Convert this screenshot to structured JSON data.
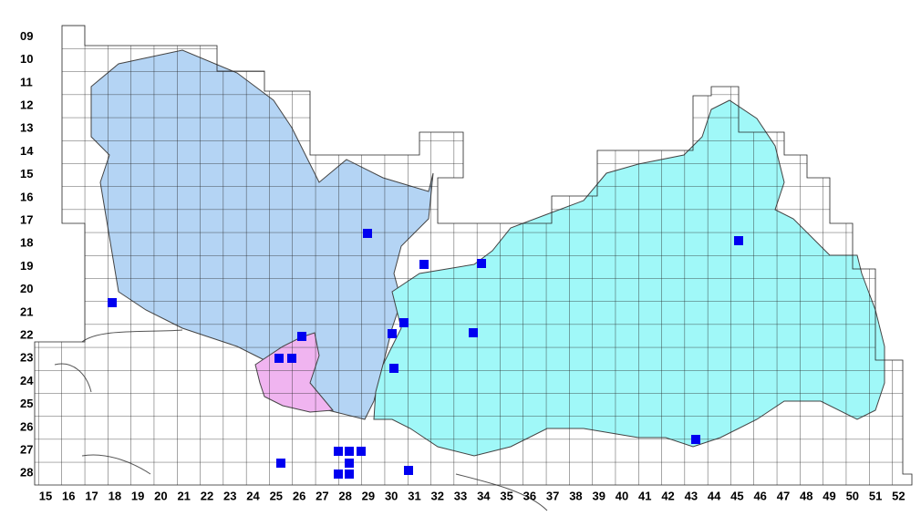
{
  "row_labels": [
    "09",
    "10",
    "11",
    "12",
    "13",
    "14",
    "15",
    "16",
    "17",
    "18",
    "19",
    "20",
    "21",
    "22",
    "23",
    "24",
    "25",
    "26",
    "27",
    "28"
  ],
  "column_labels": [
    "15",
    "16",
    "17",
    "18",
    "19",
    "20",
    "21",
    "22",
    "23",
    "24",
    "25",
    "26",
    "27",
    "28",
    "29",
    "30",
    "31",
    "32",
    "33",
    "34",
    "35",
    "36",
    "37",
    "38",
    "39",
    "40",
    "41",
    "42",
    "43",
    "44",
    "45",
    "46",
    "47",
    "48",
    "49",
    "50",
    "51",
    "52"
  ]
}
